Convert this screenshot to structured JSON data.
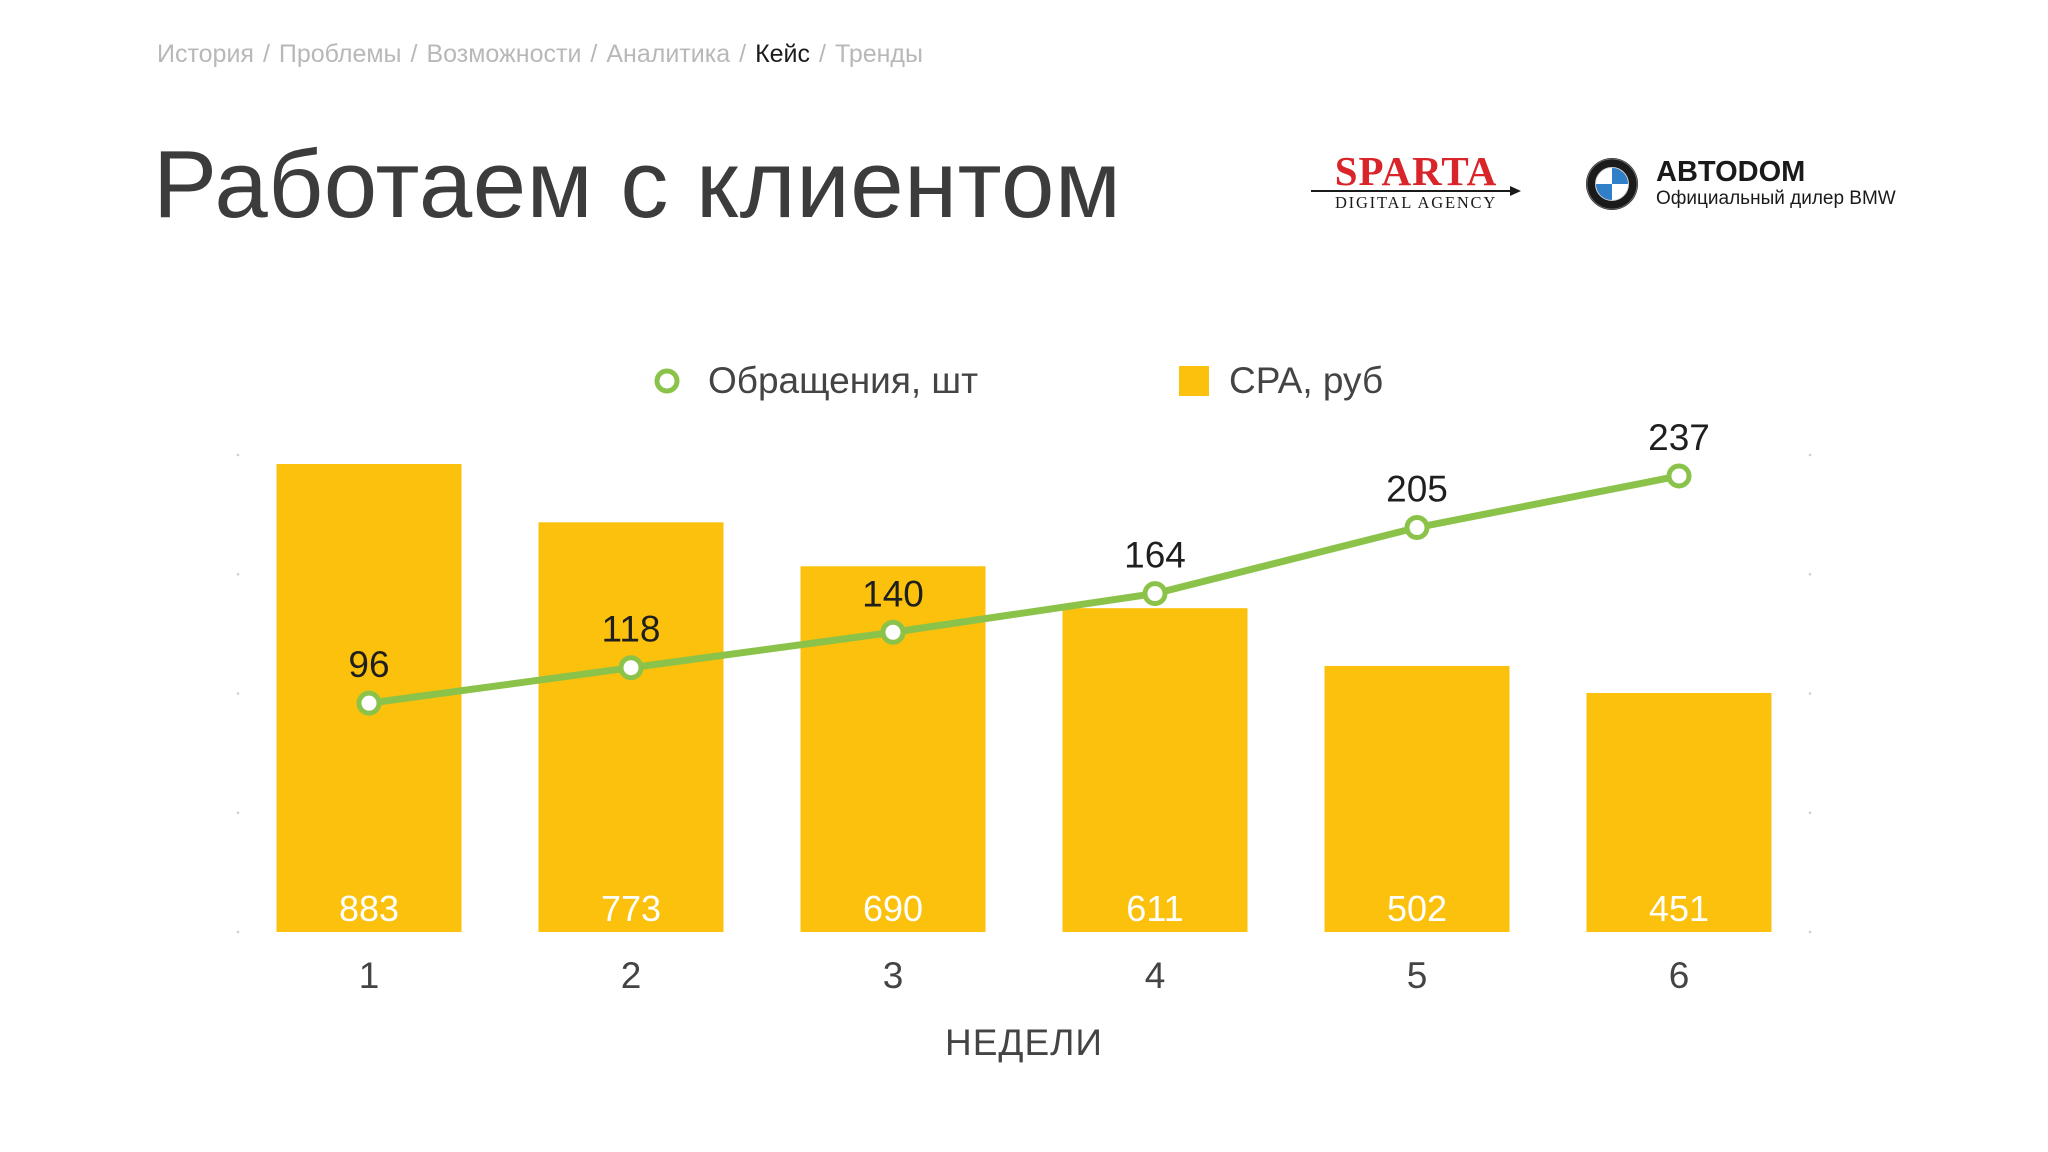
{
  "breadcrumb": {
    "items": [
      {
        "label": "История",
        "active": false
      },
      {
        "label": "Проблемы",
        "active": false
      },
      {
        "label": "Возможности",
        "active": false
      },
      {
        "label": "Аналитика",
        "active": false
      },
      {
        "label": "Кейс",
        "active": true
      },
      {
        "label": "Тренды",
        "active": false
      }
    ],
    "separator": "/"
  },
  "title": "Работаем с клиентом",
  "logos": {
    "sparta": {
      "word": "SPARTA",
      "sub": "DIGITAL AGENCY"
    },
    "avtodom": {
      "name": "ABTODOM",
      "tag": "Официальный дилер BMW"
    }
  },
  "colors": {
    "bar": "#fbc10c",
    "line": "#8bc34a",
    "title": "#3c3c3c",
    "breadcrumb_inactive": "#b8b8b8",
    "breadcrumb_active": "#1c1c1c",
    "sparta_red": "#d9252a"
  },
  "chart_data": {
    "type": "bar",
    "categories": [
      "1",
      "2",
      "3",
      "4",
      "5",
      "6"
    ],
    "xlabel": "НЕДЕЛИ",
    "legend": [
      "Обращения, шт",
      "CPA, руб"
    ],
    "legend_placement": "top-center",
    "grid": false,
    "series": [
      {
        "name": "CPA, руб",
        "type": "bar",
        "values": [
          883,
          773,
          690,
          611,
          502,
          451
        ],
        "ylim": [
          0,
          900
        ]
      },
      {
        "name": "Обращения, шт",
        "type": "line",
        "values": [
          96,
          118,
          140,
          164,
          205,
          237
        ],
        "ylim": [
          -46,
          250
        ]
      }
    ]
  }
}
